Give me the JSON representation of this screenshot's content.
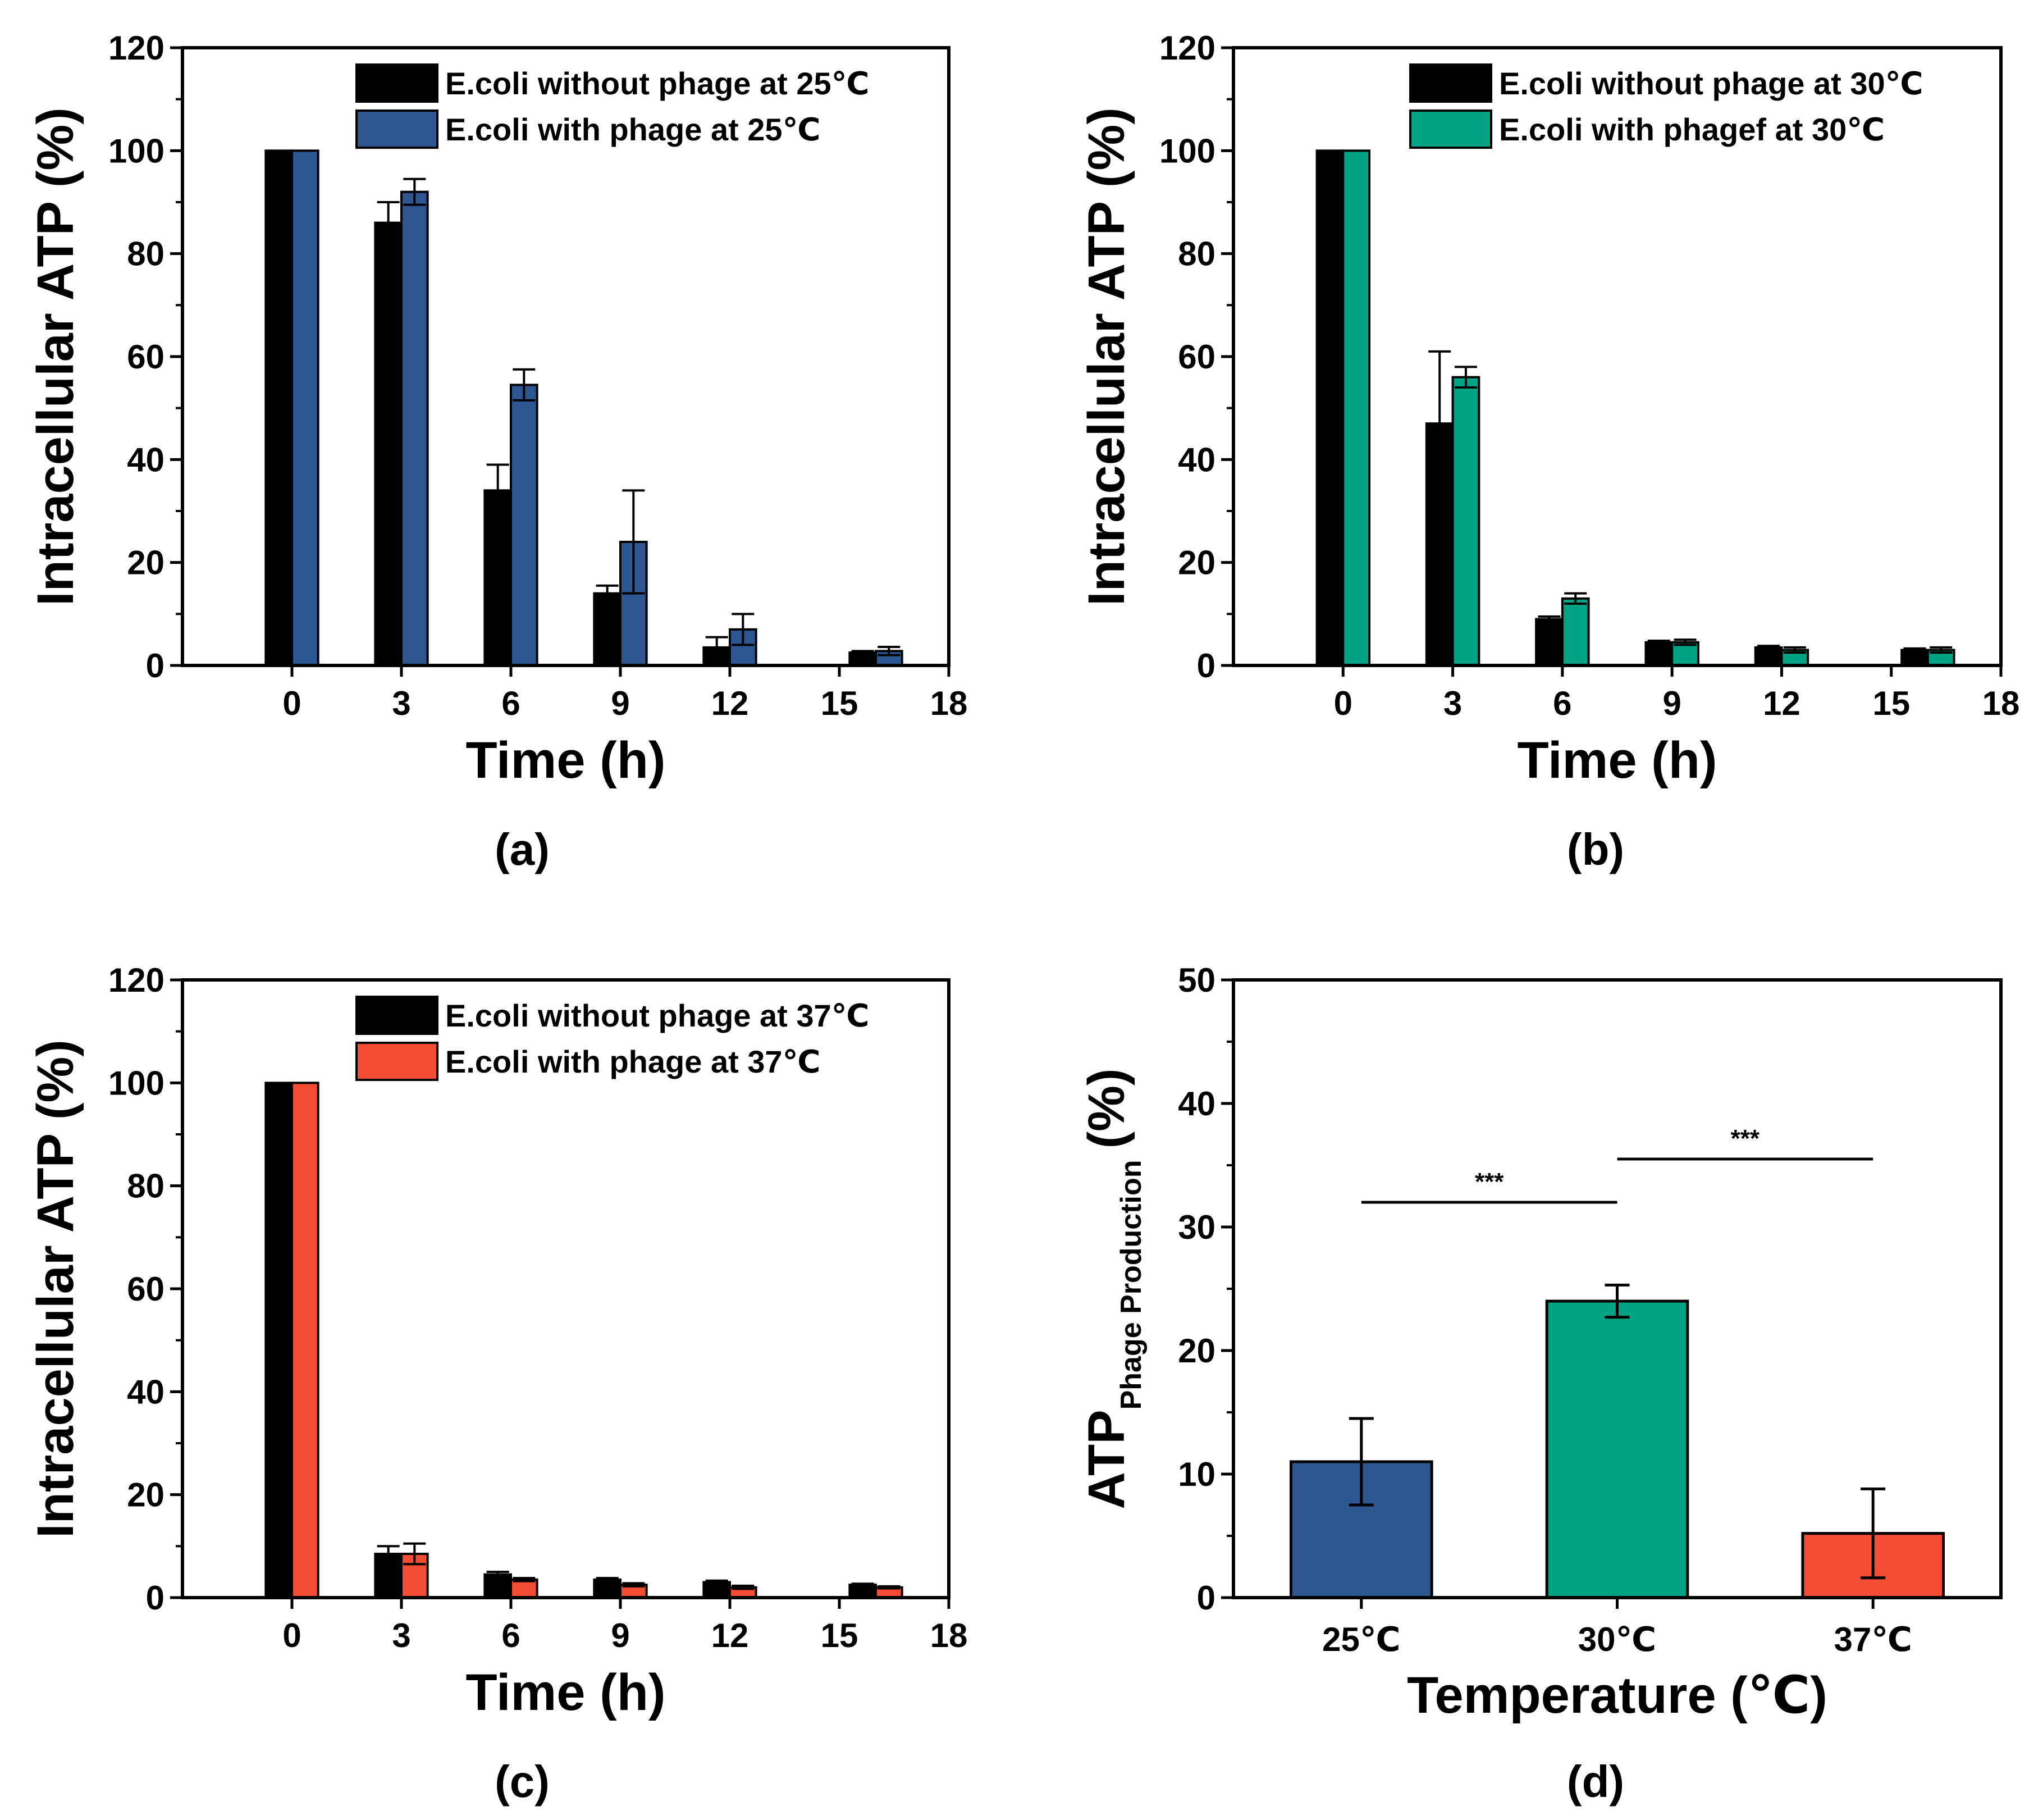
{
  "colors": {
    "without": "#000000",
    "blue": "#2e5791",
    "green": "#00a383",
    "red": "#f34e34"
  },
  "chart_data": [
    {
      "id": "a",
      "type": "bar",
      "panel_label": "(a)",
      "xlabel": "Time (h)",
      "ylabel": "Intracellular ATP (%)",
      "xlim": [
        -3,
        18
      ],
      "xticks": [
        "0",
        "3",
        "6",
        "9",
        "12",
        "15",
        "18"
      ],
      "ylim": [
        0,
        120
      ],
      "yticks": [
        "0",
        "20",
        "40",
        "60",
        "80",
        "100",
        "120"
      ],
      "x": [
        0,
        3,
        6,
        9,
        12,
        16
      ],
      "series": [
        {
          "name": "E.coli without phage at 25℃",
          "color": "#000000",
          "values": [
            100,
            86,
            34,
            14,
            3.5,
            2.5
          ],
          "errors": [
            0,
            4,
            5,
            1.5,
            2,
            0.3
          ]
        },
        {
          "name": "E.coli with phage at 25℃",
          "color": "#2e5791",
          "values": [
            100,
            92,
            54.5,
            24,
            7,
            2.8
          ],
          "errors": [
            0,
            2.5,
            3,
            10,
            3,
            0.8
          ]
        }
      ]
    },
    {
      "id": "b",
      "type": "bar",
      "panel_label": "(b)",
      "xlabel": "Time (h)",
      "ylabel": "Intracellular ATP (%)",
      "xlim": [
        -3,
        18
      ],
      "xticks": [
        "0",
        "3",
        "6",
        "9",
        "12",
        "15",
        "18"
      ],
      "ylim": [
        0,
        120
      ],
      "yticks": [
        "0",
        "20",
        "40",
        "60",
        "80",
        "100",
        "120"
      ],
      "x": [
        0,
        3,
        6,
        9,
        12,
        16
      ],
      "series": [
        {
          "name": "E.coli without phage at 30℃",
          "color": "#000000",
          "values": [
            100,
            47,
            9,
            4.5,
            3.5,
            3
          ],
          "errors": [
            0,
            14,
            0.5,
            0.3,
            0.3,
            0.3
          ]
        },
        {
          "name": "E.coli with phagef at 30℃",
          "color": "#00a383",
          "values": [
            100,
            56,
            13,
            4.5,
            3,
            3
          ],
          "errors": [
            0,
            2,
            1,
            0.5,
            0.5,
            0.5
          ]
        }
      ]
    },
    {
      "id": "c",
      "type": "bar",
      "panel_label": "(c)",
      "xlabel": "Time (h)",
      "ylabel": "Intracellular ATP (%)",
      "xlim": [
        -3,
        18
      ],
      "xticks": [
        "0",
        "3",
        "6",
        "9",
        "12",
        "15",
        "18"
      ],
      "ylim": [
        0,
        120
      ],
      "yticks": [
        "0",
        "20",
        "40",
        "60",
        "80",
        "100",
        "120"
      ],
      "x": [
        0,
        3,
        6,
        9,
        12,
        16
      ],
      "series": [
        {
          "name": "E.coli without phage at 37℃",
          "color": "#000000",
          "values": [
            100,
            8.5,
            4.5,
            3.5,
            3,
            2.5
          ],
          "errors": [
            0,
            1.5,
            0.5,
            0.3,
            0.3,
            0.2
          ]
        },
        {
          "name": "E.coli with phage at 37℃",
          "color": "#f34e34",
          "values": [
            100,
            8.5,
            3.5,
            2.5,
            2,
            2
          ],
          "errors": [
            0,
            2,
            0.3,
            0.3,
            0.3,
            0.2
          ]
        }
      ]
    },
    {
      "id": "d",
      "type": "bar",
      "panel_label": "(d)",
      "xlabel": "Temperature (℃)",
      "ylabel_main": "ATP",
      "ylabel_sub": "Phage Production",
      "ylabel_unit": "(%)",
      "ylim": [
        0,
        50
      ],
      "yticks": [
        "0",
        "10",
        "20",
        "30",
        "40",
        "50"
      ],
      "categories": [
        "25℃",
        "30℃",
        "37℃"
      ],
      "values": [
        11,
        24,
        5.2
      ],
      "errors": [
        3.5,
        1.3,
        3.6
      ],
      "colors": [
        "#2e5791",
        "#00a383",
        "#f34e34"
      ],
      "significance": [
        {
          "from": 0,
          "to": 1,
          "label": "***",
          "y": 32
        },
        {
          "from": 1,
          "to": 2,
          "label": "***",
          "y": 35.5
        }
      ]
    }
  ]
}
